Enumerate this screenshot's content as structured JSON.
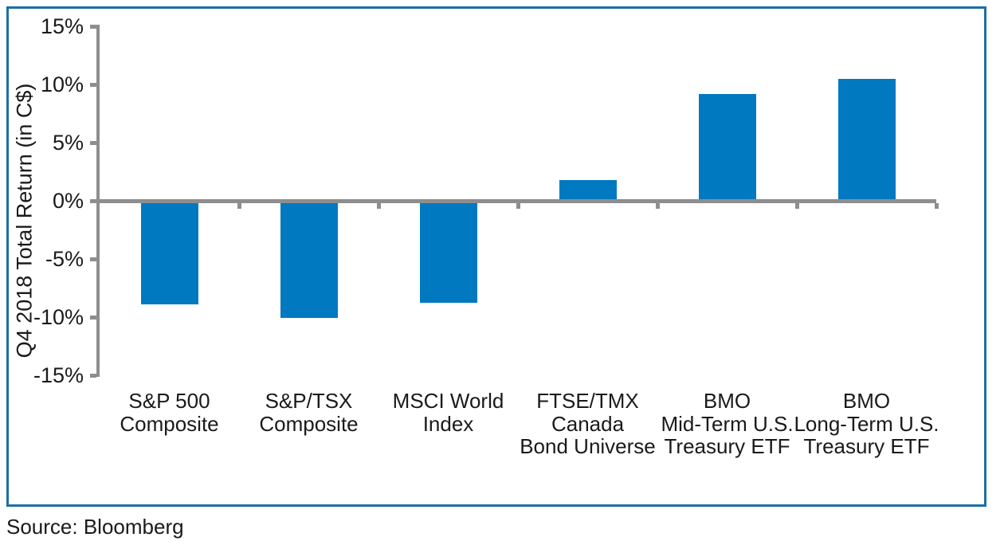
{
  "chart_data": {
    "type": "bar",
    "title": "",
    "ylabel": "Q4 2018 Total Return (in C$)",
    "categories": [
      [
        "S&P 500",
        "Composite"
      ],
      [
        "S&P/TSX",
        "Composite"
      ],
      [
        "MSCI World",
        "Index"
      ],
      [
        "FTSE/TMX",
        "Canada",
        "Bond Universe"
      ],
      [
        "BMO",
        "Mid-Term U.S.",
        "Treasury ETF"
      ],
      [
        "BMO",
        "Long-Term U.S.",
        "Treasury ETF"
      ]
    ],
    "values": [
      -8.9,
      -10.1,
      -8.8,
      1.8,
      9.2,
      10.5
    ],
    "ylim": [
      -15,
      15
    ],
    "yticks": [
      {
        "value": 15,
        "label": "15%"
      },
      {
        "value": 10,
        "label": "10%"
      },
      {
        "value": 5,
        "label": "5%"
      },
      {
        "value": 0,
        "label": "0%"
      },
      {
        "value": -5,
        "label": "-5%"
      },
      {
        "value": -10,
        "label": "-10%"
      },
      {
        "value": -15,
        "label": "-15%"
      }
    ],
    "grid": false,
    "legend": false,
    "bar_color": "#0079c1",
    "axis_color": "#8e8e8e",
    "text_color": "#1a1a1a",
    "frame_color": "#1e6fa5"
  },
  "source_note": "Source: Bloomberg"
}
